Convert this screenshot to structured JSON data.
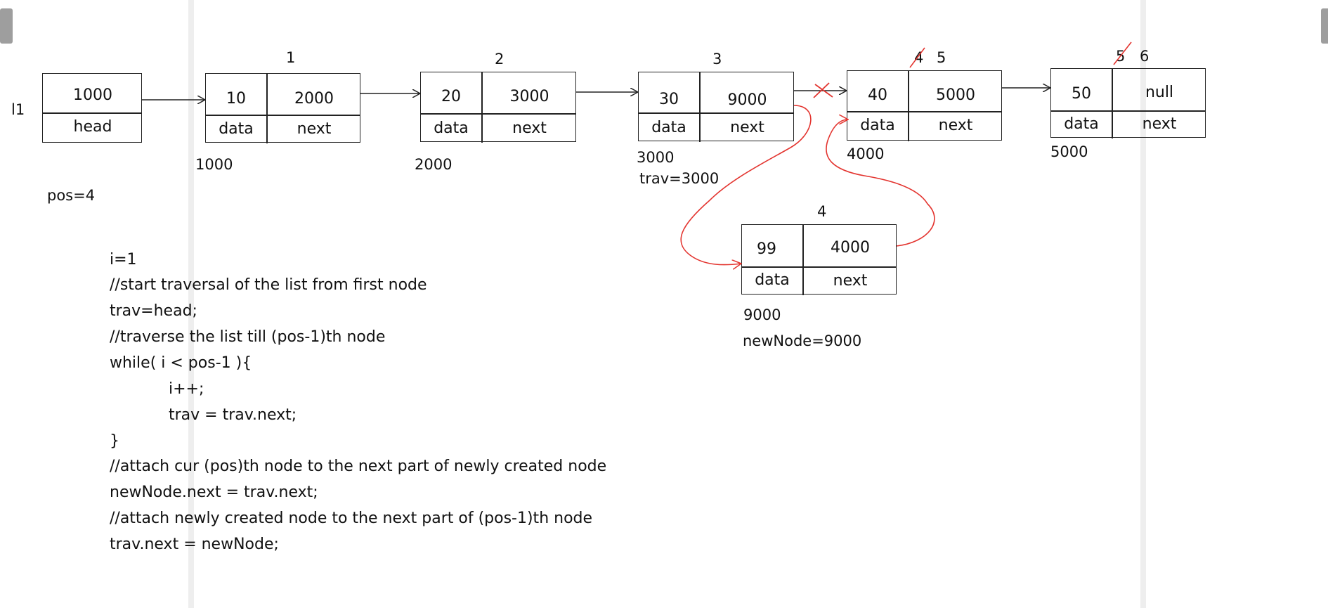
{
  "list_label": "l1",
  "head_node": {
    "value": "1000",
    "label": "head"
  },
  "nodes": [
    {
      "position": "1",
      "data": "10",
      "next": "2000",
      "data_label": "data",
      "next_label": "next",
      "address": "1000"
    },
    {
      "position": "2",
      "data": "20",
      "next": "3000",
      "data_label": "data",
      "next_label": "next",
      "address": "2000"
    },
    {
      "position": "3",
      "data": "30",
      "next": "9000",
      "data_label": "data",
      "next_label": "next",
      "address": "3000",
      "pointer_note": "trav=3000"
    },
    {
      "position_old": "4",
      "position": "5",
      "data": "40",
      "next": "5000",
      "data_label": "data",
      "next_label": "next",
      "address": "4000"
    },
    {
      "position_old": "5",
      "position": "6",
      "data": "50",
      "next": "null",
      "data_label": "data",
      "next_label": "next",
      "address": "5000"
    }
  ],
  "new_node": {
    "position": "4",
    "data": "99",
    "next": "4000",
    "data_label": "data",
    "next_label": "next",
    "address": "9000",
    "pointer_note": "newNode=9000"
  },
  "pos_label": "pos=4",
  "code_lines": [
    "i=1",
    "//start traversal of the list from first node",
    "trav=head;",
    "//traverse the list till (pos-1)th node",
    "while( i < pos-1 ){",
    "i++;",
    "trav = trav.next;",
    "}",
    "//attach cur (pos)th node to the next part of newly created node",
    "newNode.next = trav.next;",
    "//attach newly created node to the next part of (pos-1)th node",
    "trav.next = newNode;"
  ],
  "colors": {
    "ink": "#222222",
    "annotation": "#e3342f",
    "guide": "#eeeeee"
  }
}
